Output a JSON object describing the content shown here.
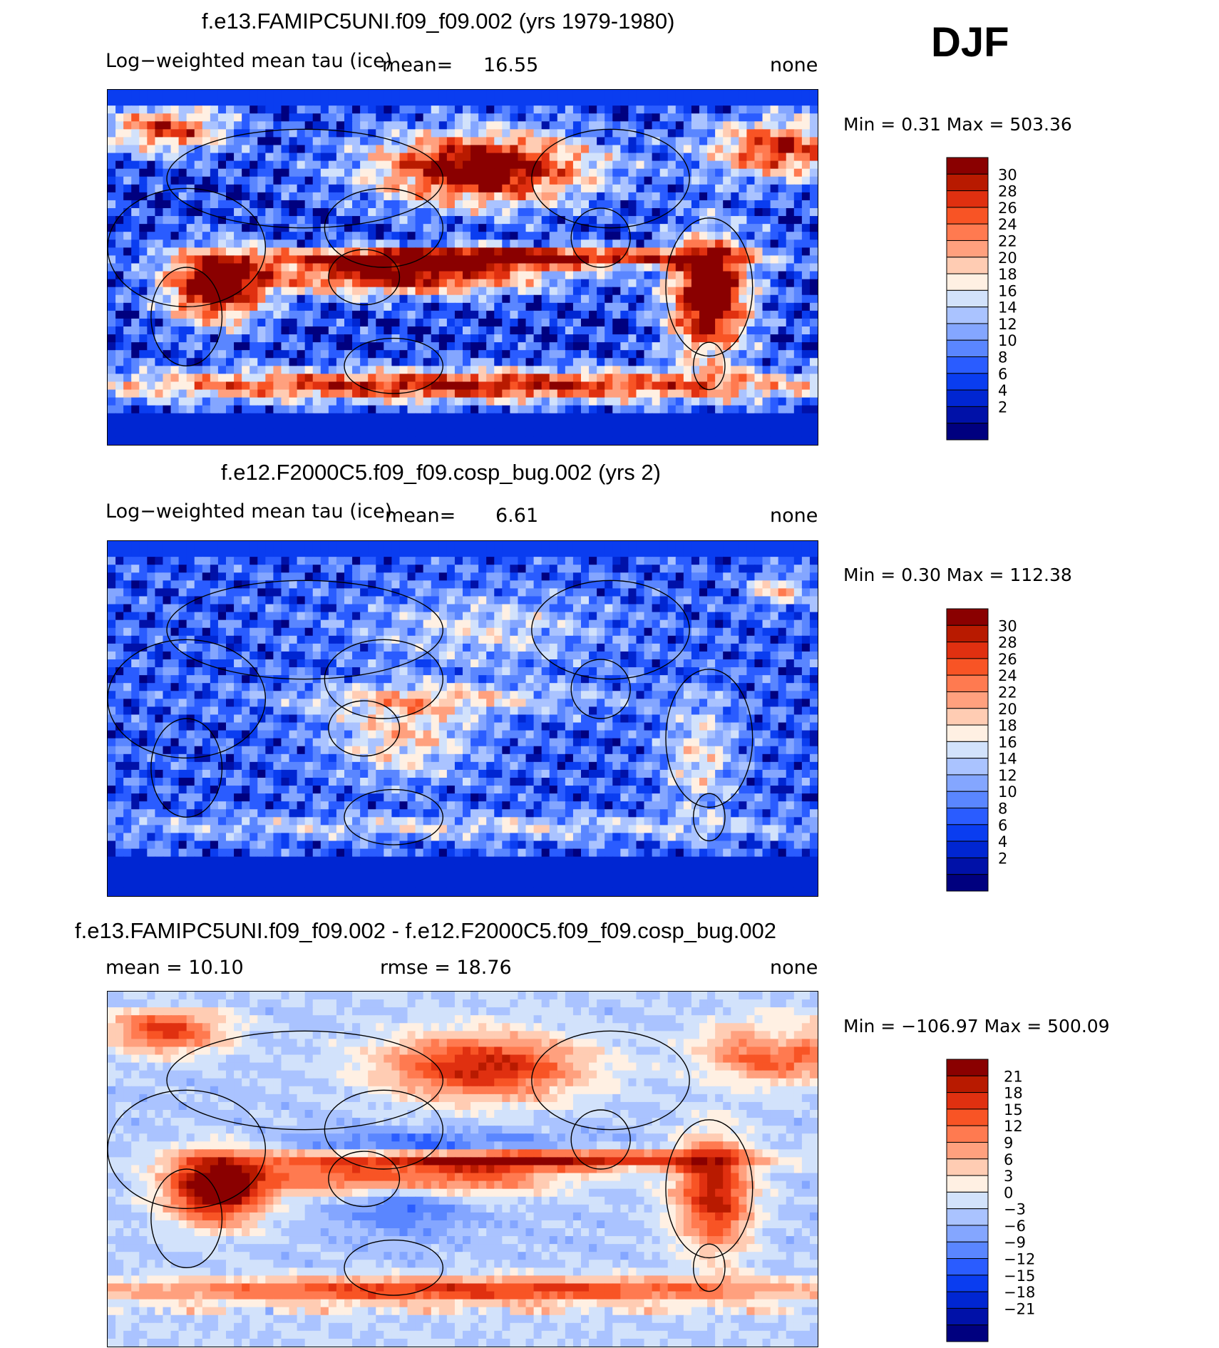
{
  "season": "DJF",
  "colors": {
    "obs_levels": [
      "#00007f",
      "#0011a8",
      "#0026d2",
      "#0a3df0",
      "#2a5cff",
      "#5a86ff",
      "#84a6ff",
      "#aac3ff",
      "#d2e2fb",
      "#fff0e3",
      "#ffccb3",
      "#ffa07e",
      "#ff7a50",
      "#f85425",
      "#e03010",
      "#b81a00",
      "#8a0000"
    ],
    "diff_levels": [
      "#00007f",
      "#0011a8",
      "#0026d2",
      "#0a3df0",
      "#2a5cff",
      "#5a86ff",
      "#84a6ff",
      "#aac3ff",
      "#d2e2fb",
      "#fff0e3",
      "#ffccb3",
      "#ffa07e",
      "#ff7a50",
      "#f85425",
      "#e03010",
      "#b81a00",
      "#8a0000"
    ]
  },
  "chart_data": [
    {
      "type": "heatmap",
      "title": "f.e13.FAMIPC5UNI.f09_f09.002 (yrs 1979-1980)",
      "variable": "Log−weighted mean tau (ice)",
      "mean_label": "mean=",
      "mean_value": "16.55",
      "units": "none",
      "min_max_text": "Min =     0.31  Max  =  503.36",
      "min": 0.31,
      "max": 503.36,
      "mean": 16.55,
      "colorbar_levels": [
        "30",
        "28",
        "26",
        "24",
        "22",
        "20",
        "18",
        "16",
        "14",
        "12",
        "10",
        "8",
        "6",
        "4",
        "2"
      ],
      "field": "model1"
    },
    {
      "type": "heatmap",
      "title": "f.e12.F2000C5.f09_f09.cosp_bug.002 (yrs 2)",
      "variable": "Log−weighted mean tau (ice)",
      "mean_label": "mean=",
      "mean_value": "6.61",
      "units": "none",
      "min_max_text": "Min =     0.30  Max  =  112.38",
      "min": 0.3,
      "max": 112.38,
      "mean": 6.61,
      "colorbar_levels": [
        "30",
        "28",
        "26",
        "24",
        "22",
        "20",
        "18",
        "16",
        "14",
        "12",
        "10",
        "8",
        "6",
        "4",
        "2"
      ],
      "field": "model2"
    },
    {
      "type": "heatmap",
      "title": "f.e13.FAMIPC5UNI.f09_f09.002 - f.e12.F2000C5.f09_f09.cosp_bug.002",
      "mean_text": "mean  =    10.10",
      "rmse_text": "rmse  =    18.76",
      "mean": 10.1,
      "rmse": 18.76,
      "units": "none",
      "min_max_text": "Min  =  −106.97  Max  =  500.09",
      "min": -106.97,
      "max": 500.09,
      "colorbar_levels": [
        "21",
        "18",
        "15",
        "12",
        "9",
        "6",
        "3",
        "0",
        "−3",
        "−6",
        "−9",
        "−12",
        "−15",
        "−18",
        "−21"
      ],
      "field": "difference"
    }
  ]
}
